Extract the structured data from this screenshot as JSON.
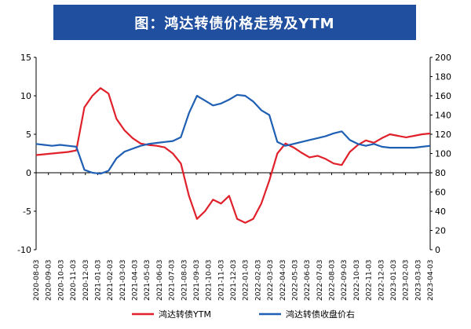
{
  "chart_data": {
    "type": "line",
    "title": "图：鸿达转债价格走势及YTM",
    "x_ticks": [
      "2020-08-03",
      "2020-09-03",
      "2020-10-03",
      "2020-11-03",
      "2020-12-03",
      "2021-01-03",
      "2021-02-03",
      "2021-03-03",
      "2021-04-03",
      "2021-05-03",
      "2021-06-03",
      "2021-07-03",
      "2021-08-03",
      "2021-09-03",
      "2021-10-03",
      "2021-11-03",
      "2021-12-03",
      "2022-01-03",
      "2022-02-03",
      "2022-03-03",
      "2022-04-03",
      "2022-05-03",
      "2022-06-03",
      "2022-07-03",
      "2022-08-03",
      "2022-09-03",
      "2022-10-03",
      "2022-11-03",
      "2022-12-03",
      "2023-01-03",
      "2023-02-03",
      "2023-03-03",
      "2023-04-03"
    ],
    "y_left": {
      "ticks": [
        "15",
        "10",
        "5",
        "0",
        "-5",
        "-10"
      ],
      "min": -10,
      "max": 15
    },
    "y_right": {
      "ticks": [
        "200",
        "180",
        "160",
        "140",
        "120",
        "100",
        "80",
        "60",
        "40",
        "20",
        "0"
      ],
      "min": 0,
      "max": 200
    },
    "series": [
      {
        "name": "鸿达转债YTM",
        "axis": "left",
        "color": "#e0202a",
        "values": [
          2.3,
          2.4,
          2.5,
          2.6,
          2.7,
          2.9,
          8.5,
          10.0,
          11.0,
          10.3,
          7.0,
          5.5,
          4.5,
          3.8,
          3.6,
          3.5,
          3.3,
          2.5,
          1.2,
          -3.0,
          -6.0,
          -5.0,
          -3.5,
          -4.0,
          -3.0,
          -6.0,
          -6.5,
          -6.0,
          -4.0,
          -1.0,
          2.5,
          3.8,
          3.3,
          2.6,
          2.0,
          2.2,
          1.8,
          1.2,
          1.0,
          2.7,
          3.6,
          4.2,
          3.9,
          4.5,
          5.0,
          4.8,
          4.6,
          4.8,
          5.0,
          5.1
        ]
      },
      {
        "name": "鸿达转债收盘价右",
        "axis": "right",
        "color": "#1f5fb4",
        "values": [
          110,
          109,
          108,
          109,
          108,
          107,
          83,
          80,
          79,
          82,
          95,
          102,
          105,
          108,
          110,
          111,
          112,
          113,
          117,
          142,
          160,
          155,
          150,
          152,
          156,
          161,
          160,
          154,
          145,
          140,
          112,
          108,
          110,
          112,
          114,
          116,
          118,
          121,
          123,
          114,
          110,
          108,
          110,
          107,
          106,
          106,
          106,
          106,
          107,
          108
        ]
      }
    ]
  },
  "legend": [
    {
      "label": "鸿达转债YTM",
      "color": "#e0202a"
    },
    {
      "label": "鸿达转债收盘价右",
      "color": "#1f5fb4"
    }
  ]
}
